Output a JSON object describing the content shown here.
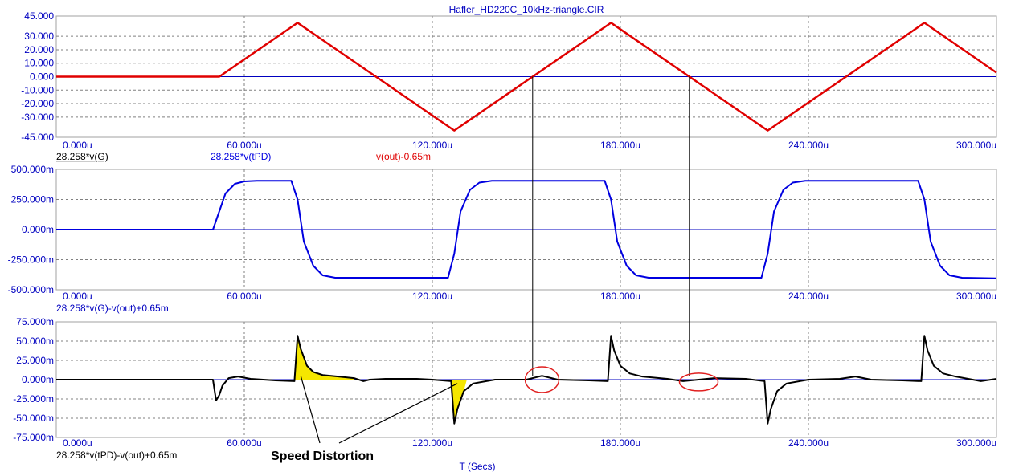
{
  "window": {
    "title": "Hafler_HD220C_10kHz-triangle.CIR"
  },
  "colors": {
    "background": "#ffffff",
    "axis_label": "#0000c0",
    "grid": "#808080",
    "zero_line": "#0000c0",
    "red_trace": "#e00000",
    "blue_trace": "#0000e0",
    "black_trace": "#000000",
    "fill": "#f5e600",
    "circle": "#e02020"
  },
  "x_axis": {
    "label": "T (Secs)",
    "ticks": [
      "0.000u",
      "60.000u",
      "120.000u",
      "180.000u",
      "240.000u",
      "300.000u"
    ],
    "tick_values": [
      0,
      60,
      120,
      180,
      240,
      300
    ],
    "range": [
      0,
      300
    ]
  },
  "annotations": {
    "speed_distortion": "Speed Distortion"
  },
  "chart_data": [
    {
      "type": "line",
      "title": "Hafler_HD220C_10kHz-triangle.CIR",
      "xlabel": "",
      "ylim": [
        -45,
        45
      ],
      "y_ticks": [
        "45.000",
        "30.000",
        "20.000",
        "10.000",
        "0.000",
        "-10.000",
        "-20.000",
        "-30.000",
        "-45.000"
      ],
      "y_tick_values": [
        45,
        30,
        20,
        10,
        0,
        -10,
        -20,
        -30,
        -45
      ],
      "grid": true,
      "series": [
        {
          "name": "v(out)-0.65m",
          "color": "#e00000",
          "x": [
            0,
            52,
            77,
            127,
            177,
            227,
            277,
            300
          ],
          "y": [
            0,
            0,
            40,
            -40,
            40,
            -40,
            40,
            3
          ]
        }
      ]
    },
    {
      "type": "line",
      "ylim": [
        -500,
        500
      ],
      "y_ticks": [
        "500.000m",
        "250.000m",
        "0.000m",
        "-250.000m",
        "-500.000m"
      ],
      "y_tick_values": [
        500,
        250,
        0,
        -250,
        -500
      ],
      "grid": true,
      "series_labels": [
        "28.258*v(G)",
        "28.258*v(tPD)",
        "v(out)-0.65m"
      ],
      "series": [
        {
          "name": "28.258*v(tPD)",
          "color": "#0000e0",
          "x": [
            0,
            50,
            52,
            54,
            57,
            60,
            64,
            75,
            77,
            79,
            82,
            85,
            89,
            100,
            125,
            127,
            129,
            132,
            135,
            139,
            150,
            175,
            177,
            179,
            182,
            185,
            189,
            200,
            225,
            227,
            229,
            232,
            235,
            239,
            250,
            275,
            277,
            279,
            282,
            285,
            289,
            300
          ],
          "y": [
            0,
            0,
            150,
            300,
            380,
            400,
            405,
            405,
            250,
            -100,
            -300,
            -380,
            -400,
            -400,
            -400,
            -200,
            150,
            330,
            390,
            405,
            405,
            405,
            250,
            -100,
            -300,
            -380,
            -400,
            -400,
            -400,
            -200,
            150,
            330,
            390,
            405,
            405,
            405,
            250,
            -100,
            -300,
            -380,
            -400,
            -405
          ]
        }
      ]
    },
    {
      "type": "line",
      "ylim": [
        -75,
        75
      ],
      "y_ticks": [
        "75.000m",
        "50.000m",
        "25.000m",
        "0.000m",
        "-25.000m",
        "-50.000m",
        "-75.000m"
      ],
      "y_tick_values": [
        75,
        50,
        25,
        0,
        -25,
        -50,
        -75
      ],
      "grid": true,
      "series_labels": [
        "28.258*v(G)-v(out)+0.65m",
        "28.258*v(tPD)-v(out)+0.65m"
      ],
      "series": [
        {
          "name": "28.258*v(tPD)-v(out)+0.65m",
          "color": "#000000",
          "x": [
            0,
            50,
            51,
            52,
            53,
            55,
            58,
            62,
            70,
            76,
            77,
            78,
            80,
            82,
            85,
            90,
            95,
            98,
            100,
            105,
            115,
            120,
            126,
            127,
            128,
            130,
            133,
            140,
            150,
            155,
            160,
            170,
            176,
            177,
            178,
            180,
            183,
            187,
            195,
            200,
            210,
            220,
            226,
            227,
            228,
            230,
            233,
            240,
            250,
            255,
            260,
            270,
            276,
            277,
            278,
            280,
            283,
            287,
            295,
            300
          ],
          "y": [
            0,
            0,
            -27,
            -20,
            -8,
            2,
            4,
            1,
            -1,
            -2,
            57,
            40,
            18,
            10,
            6,
            4,
            2,
            -2,
            0,
            1,
            1,
            0,
            -2,
            -57,
            -38,
            -15,
            -5,
            0,
            0,
            5,
            0,
            -1,
            -2,
            57,
            38,
            18,
            8,
            4,
            1,
            -2,
            2,
            1,
            -2,
            -57,
            -38,
            -15,
            -5,
            0,
            1,
            4,
            0,
            -1,
            -2,
            57,
            38,
            18,
            8,
            4,
            -2,
            1
          ]
        }
      ]
    }
  ]
}
